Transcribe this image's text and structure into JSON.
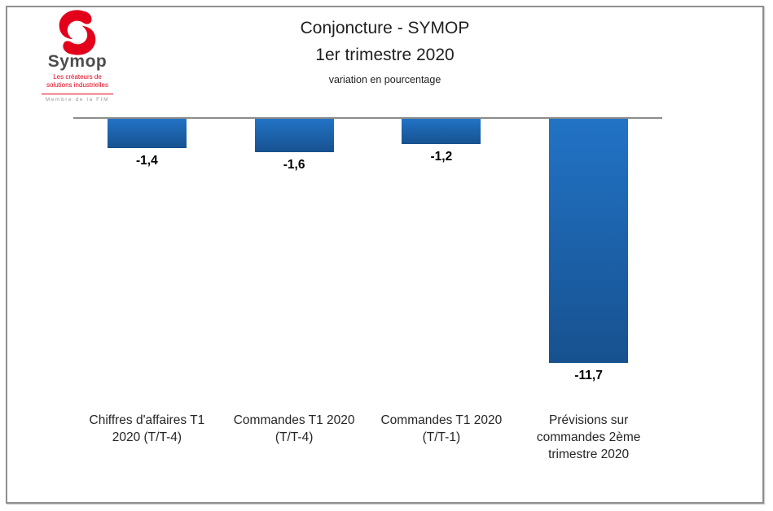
{
  "logo": {
    "name": "Symop",
    "tagline": "Les créateurs de\nsolutions industrielles",
    "membership": "Membre de la FIM",
    "brand_red": "#e2001a",
    "name_gray": "#4d4d4f"
  },
  "chart_data": {
    "type": "bar",
    "title": "Conjoncture - SYMOP",
    "subtitle": "1er trimestre 2020",
    "note": "variation en pourcentage",
    "categories": [
      "Chiffres d'affaires T1\n2020   (T/T-4)",
      "Commandes T1 2020\n(T/T-4)",
      "Commandes T1 2020\n(T/T-1)",
      "Prévisions sur\ncommandes 2ème\ntrimestre 2020"
    ],
    "values": [
      -1.4,
      -1.6,
      -1.2,
      -11.7
    ],
    "value_labels": [
      "-1,4",
      "-1,6",
      "-1,2",
      "-11,7"
    ],
    "ylim": [
      -12,
      0
    ],
    "grid": false,
    "legend": false,
    "bar_color_top": "#2273c6",
    "bar_color_bottom": "#17518f",
    "axis_color": "#8c8c8c"
  }
}
